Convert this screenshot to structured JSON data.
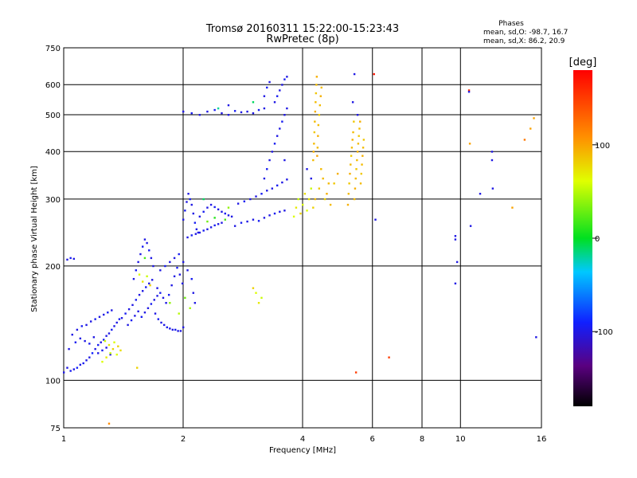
{
  "chart_data": {
    "type": "scatter",
    "title": "Tromsø 20160311 15:22:00-15:23:43",
    "subtitle": "RwPretec (8p)",
    "xlabel": "Frequency [MHz]",
    "ylabel": "Stationary phase Virtual Height [km]",
    "x_scale": "log",
    "y_scale": "log",
    "xlim": [
      1,
      16
    ],
    "ylim": [
      75,
      750
    ],
    "x_ticks": [
      1,
      2,
      4,
      6,
      8,
      10,
      16
    ],
    "x_tick_labels": [
      "1",
      "2",
      "4",
      "6",
      "8",
      "10",
      "16"
    ],
    "y_ticks": [
      75,
      100,
      200,
      300,
      400,
      500,
      600,
      750
    ],
    "y_tick_labels": [
      "75",
      "100",
      "200",
      "300",
      "400",
      "500",
      "600",
      "750"
    ],
    "grid": true,
    "info": {
      "heading": "Phases",
      "line_o": "mean, sd,O: -98.7, 16.7",
      "line_x": "mean, sd,X:  86.2, 20.9"
    },
    "colorbar": {
      "label": "[deg]",
      "min": -180,
      "max": 180,
      "ticks": [
        100,
        0,
        -100
      ],
      "tick_labels": [
        "100",
        "0",
        "-100"
      ]
    },
    "points": [
      [
        1.0,
        105,
        -100
      ],
      [
        1.02,
        108,
        -100
      ],
      [
        1.04,
        106,
        -95
      ],
      [
        1.06,
        107,
        -100
      ],
      [
        1.08,
        108,
        -90
      ],
      [
        1.1,
        110,
        -100
      ],
      [
        1.12,
        111,
        -95
      ],
      [
        1.14,
        113,
        -100
      ],
      [
        1.16,
        115,
        -100
      ],
      [
        1.18,
        118,
        -90
      ],
      [
        1.2,
        121,
        -100
      ],
      [
        1.22,
        124,
        -95
      ],
      [
        1.24,
        126,
        -100
      ],
      [
        1.26,
        128,
        -95
      ],
      [
        1.28,
        131,
        -100
      ],
      [
        1.3,
        133,
        -100
      ],
      [
        1.32,
        136,
        -95
      ],
      [
        1.34,
        139,
        -100
      ],
      [
        1.36,
        142,
        -100
      ],
      [
        1.38,
        145,
        -95
      ],
      [
        1.05,
        132,
        -100
      ],
      [
        1.08,
        136,
        -100
      ],
      [
        1.11,
        139,
        -95
      ],
      [
        1.14,
        140,
        -100
      ],
      [
        1.17,
        143,
        -100
      ],
      [
        1.2,
        145,
        -95
      ],
      [
        1.23,
        147,
        -100
      ],
      [
        1.26,
        149,
        -100
      ],
      [
        1.29,
        151,
        -95
      ],
      [
        1.32,
        153,
        -100
      ],
      [
        1.03,
        121,
        -100
      ],
      [
        1.07,
        126,
        -95
      ],
      [
        1.1,
        129,
        -100
      ],
      [
        1.13,
        127,
        -100
      ],
      [
        1.16,
        125,
        -95
      ],
      [
        1.19,
        130,
        -100
      ],
      [
        1.22,
        118,
        -100
      ],
      [
        1.25,
        120,
        -95
      ],
      [
        1.28,
        122,
        -100
      ],
      [
        1.31,
        117,
        -100
      ],
      [
        1.25,
        112,
        60
      ],
      [
        1.28,
        115,
        70
      ],
      [
        1.31,
        118,
        55
      ],
      [
        1.33,
        121,
        80
      ],
      [
        1.36,
        117,
        60
      ],
      [
        1.39,
        120,
        75
      ],
      [
        1.27,
        127,
        55
      ],
      [
        1.3,
        124,
        70
      ],
      [
        1.34,
        126,
        60
      ],
      [
        1.37,
        123,
        80
      ],
      [
        1.02,
        208,
        -100
      ],
      [
        1.04,
        210,
        -95
      ],
      [
        1.06,
        209,
        -100
      ],
      [
        1.3,
        77,
        110
      ],
      [
        1.53,
        108,
        80
      ],
      [
        1.4,
        146,
        -100
      ],
      [
        1.43,
        150,
        -95
      ],
      [
        1.46,
        154,
        -100
      ],
      [
        1.49,
        158,
        -100
      ],
      [
        1.52,
        163,
        -95
      ],
      [
        1.55,
        168,
        -100
      ],
      [
        1.58,
        172,
        -100
      ],
      [
        1.61,
        176,
        -95
      ],
      [
        1.64,
        180,
        -100
      ],
      [
        1.67,
        184,
        -100
      ],
      [
        1.45,
        140,
        -100
      ],
      [
        1.48,
        144,
        -95
      ],
      [
        1.51,
        148,
        -100
      ],
      [
        1.54,
        152,
        -100
      ],
      [
        1.57,
        147,
        -95
      ],
      [
        1.6,
        151,
        -100
      ],
      [
        1.63,
        155,
        -100
      ],
      [
        1.66,
        159,
        -95
      ],
      [
        1.69,
        163,
        -100
      ],
      [
        1.72,
        167,
        -100
      ],
      [
        1.5,
        185,
        -100
      ],
      [
        1.52,
        195,
        -95
      ],
      [
        1.54,
        205,
        -100
      ],
      [
        1.56,
        215,
        -100
      ],
      [
        1.58,
        225,
        -95
      ],
      [
        1.6,
        235,
        -100
      ],
      [
        1.62,
        230,
        -100
      ],
      [
        1.64,
        220,
        -95
      ],
      [
        1.66,
        210,
        -100
      ],
      [
        1.68,
        200,
        -100
      ],
      [
        1.55,
        190,
        60
      ],
      [
        1.58,
        182,
        70
      ],
      [
        1.62,
        188,
        55
      ],
      [
        1.65,
        178,
        80
      ],
      [
        1.6,
        210,
        20
      ],
      [
        1.7,
        150,
        -100
      ],
      [
        1.73,
        145,
        -95
      ],
      [
        1.76,
        142,
        -100
      ],
      [
        1.79,
        140,
        -100
      ],
      [
        1.82,
        138,
        -95
      ],
      [
        1.85,
        137,
        -100
      ],
      [
        1.88,
        136,
        -100
      ],
      [
        1.91,
        136,
        -95
      ],
      [
        1.94,
        135,
        -100
      ],
      [
        1.97,
        135,
        -100
      ],
      [
        1.72,
        175,
        -100
      ],
      [
        1.75,
        170,
        -95
      ],
      [
        1.78,
        165,
        -100
      ],
      [
        1.81,
        160,
        -100
      ],
      [
        1.84,
        168,
        -95
      ],
      [
        1.87,
        178,
        -100
      ],
      [
        1.9,
        188,
        -100
      ],
      [
        1.93,
        198,
        -95
      ],
      [
        1.96,
        190,
        -100
      ],
      [
        1.99,
        180,
        -100
      ],
      [
        1.75,
        195,
        -100
      ],
      [
        1.8,
        200,
        -95
      ],
      [
        1.85,
        205,
        -100
      ],
      [
        1.9,
        210,
        -100
      ],
      [
        1.95,
        215,
        -95
      ],
      [
        2.0,
        205,
        -100
      ],
      [
        2.05,
        195,
        -100
      ],
      [
        2.1,
        185,
        -95
      ],
      [
        2.12,
        170,
        -100
      ],
      [
        2.14,
        160,
        -100
      ],
      [
        1.85,
        160,
        40
      ],
      [
        1.95,
        150,
        50
      ],
      [
        2.02,
        165,
        30
      ],
      [
        2.08,
        155,
        45
      ],
      [
        2.0,
        138,
        -100
      ],
      [
        2.0,
        265,
        -100
      ],
      [
        2.02,
        280,
        -95
      ],
      [
        2.04,
        295,
        -100
      ],
      [
        2.06,
        310,
        -100
      ],
      [
        2.08,
        300,
        -95
      ],
      [
        2.1,
        290,
        -100
      ],
      [
        2.12,
        275,
        -100
      ],
      [
        2.14,
        260,
        -95
      ],
      [
        2.16,
        250,
        -100
      ],
      [
        2.18,
        245,
        -100
      ],
      [
        2.2,
        270,
        -100
      ],
      [
        2.25,
        278,
        -95
      ],
      [
        2.3,
        285,
        -100
      ],
      [
        2.35,
        290,
        -100
      ],
      [
        2.4,
        286,
        -95
      ],
      [
        2.45,
        282,
        -100
      ],
      [
        2.5,
        278,
        -100
      ],
      [
        2.55,
        275,
        -95
      ],
      [
        2.6,
        272,
        -100
      ],
      [
        2.65,
        270,
        -100
      ],
      [
        2.05,
        238,
        -100
      ],
      [
        2.1,
        241,
        -95
      ],
      [
        2.15,
        243,
        -100
      ],
      [
        2.2,
        245,
        -100
      ],
      [
        2.25,
        248,
        -95
      ],
      [
        2.3,
        250,
        -100
      ],
      [
        2.35,
        253,
        -100
      ],
      [
        2.4,
        256,
        -95
      ],
      [
        2.45,
        258,
        -100
      ],
      [
        2.5,
        260,
        -100
      ],
      [
        2.3,
        262,
        30
      ],
      [
        2.4,
        268,
        10
      ],
      [
        2.55,
        265,
        20
      ],
      [
        2.25,
        300,
        -10
      ],
      [
        2.6,
        285,
        40
      ],
      [
        2.7,
        255,
        -100
      ],
      [
        2.8,
        260,
        -95
      ],
      [
        2.9,
        262,
        -100
      ],
      [
        3.0,
        265,
        -100
      ],
      [
        3.1,
        263,
        -95
      ],
      [
        3.2,
        268,
        -100
      ],
      [
        3.3,
        272,
        -100
      ],
      [
        3.4,
        275,
        -95
      ],
      [
        3.5,
        278,
        -100
      ],
      [
        3.6,
        280,
        -100
      ],
      [
        2.75,
        292,
        -100
      ],
      [
        2.85,
        296,
        -95
      ],
      [
        2.95,
        300,
        -100
      ],
      [
        3.05,
        305,
        -100
      ],
      [
        3.15,
        310,
        -95
      ],
      [
        3.25,
        316,
        -100
      ],
      [
        3.35,
        320,
        -100
      ],
      [
        3.45,
        326,
        -95
      ],
      [
        3.55,
        332,
        -100
      ],
      [
        3.65,
        338,
        -100
      ],
      [
        3.2,
        340,
        -100
      ],
      [
        3.25,
        360,
        -95
      ],
      [
        3.3,
        380,
        -100
      ],
      [
        3.35,
        400,
        -100
      ],
      [
        3.4,
        420,
        -95
      ],
      [
        3.45,
        440,
        -100
      ],
      [
        3.5,
        460,
        -100
      ],
      [
        3.55,
        480,
        -95
      ],
      [
        3.6,
        500,
        -100
      ],
      [
        3.65,
        520,
        -100
      ],
      [
        3.4,
        540,
        -100
      ],
      [
        3.45,
        560,
        -95
      ],
      [
        3.5,
        580,
        -100
      ],
      [
        3.55,
        600,
        -100
      ],
      [
        3.6,
        620,
        -95
      ],
      [
        3.65,
        630,
        -100
      ],
      [
        3.3,
        610,
        -100
      ],
      [
        3.25,
        590,
        -95
      ],
      [
        3.2,
        560,
        -100
      ],
      [
        3.6,
        380,
        -100
      ],
      [
        2.0,
        510,
        -100
      ],
      [
        2.1,
        505,
        -95
      ],
      [
        2.2,
        500,
        -100
      ],
      [
        2.3,
        510,
        -100
      ],
      [
        2.4,
        515,
        -95
      ],
      [
        2.5,
        505,
        -100
      ],
      [
        2.6,
        500,
        -100
      ],
      [
        2.7,
        512,
        -95
      ],
      [
        2.8,
        508,
        -100
      ],
      [
        2.9,
        510,
        -100
      ],
      [
        3.0,
        505,
        -100
      ],
      [
        3.1,
        515,
        -95
      ],
      [
        3.2,
        520,
        -100
      ],
      [
        2.6,
        530,
        -100
      ],
      [
        2.45,
        520,
        -20
      ],
      [
        3.0,
        540,
        -10
      ],
      [
        3.05,
        170,
        60
      ],
      [
        3.1,
        160,
        70
      ],
      [
        3.15,
        165,
        55
      ],
      [
        3.0,
        175,
        80
      ],
      [
        3.8,
        270,
        60
      ],
      [
        3.85,
        285,
        70
      ],
      [
        3.9,
        300,
        55
      ],
      [
        3.95,
        275,
        80
      ],
      [
        4.0,
        290,
        60
      ],
      [
        4.05,
        310,
        75
      ],
      [
        4.1,
        280,
        60
      ],
      [
        4.15,
        300,
        70
      ],
      [
        4.2,
        320,
        55
      ],
      [
        4.25,
        285,
        80
      ],
      [
        4.3,
        300,
        90
      ],
      [
        4.4,
        320,
        85
      ],
      [
        4.5,
        340,
        90
      ],
      [
        4.6,
        310,
        95
      ],
      [
        4.7,
        290,
        90
      ],
      [
        4.8,
        330,
        85
      ],
      [
        4.9,
        350,
        95
      ],
      [
        4.45,
        360,
        90
      ],
      [
        4.55,
        300,
        80
      ],
      [
        4.65,
        330,
        90
      ],
      [
        4.25,
        380,
        90
      ],
      [
        4.26,
        400,
        95
      ],
      [
        4.27,
        420,
        90
      ],
      [
        4.28,
        450,
        85
      ],
      [
        4.29,
        480,
        90
      ],
      [
        4.3,
        510,
        95
      ],
      [
        4.31,
        540,
        90
      ],
      [
        4.32,
        570,
        85
      ],
      [
        4.33,
        600,
        90
      ],
      [
        4.34,
        630,
        95
      ],
      [
        4.35,
        390,
        100
      ],
      [
        4.36,
        410,
        90
      ],
      [
        4.37,
        440,
        95
      ],
      [
        4.38,
        470,
        90
      ],
      [
        4.4,
        500,
        85
      ],
      [
        4.42,
        530,
        90
      ],
      [
        4.44,
        560,
        95
      ],
      [
        4.46,
        590,
        90
      ],
      [
        4.2,
        340,
        -100
      ],
      [
        4.1,
        360,
        -100
      ],
      [
        5.2,
        290,
        95
      ],
      [
        5.22,
        310,
        90
      ],
      [
        5.24,
        330,
        85
      ],
      [
        5.26,
        350,
        95
      ],
      [
        5.28,
        370,
        90
      ],
      [
        5.3,
        390,
        85
      ],
      [
        5.32,
        410,
        90
      ],
      [
        5.34,
        430,
        95
      ],
      [
        5.36,
        450,
        90
      ],
      [
        5.38,
        480,
        85
      ],
      [
        5.4,
        300,
        90
      ],
      [
        5.42,
        320,
        95
      ],
      [
        5.44,
        340,
        90
      ],
      [
        5.46,
        360,
        85
      ],
      [
        5.48,
        380,
        90
      ],
      [
        5.5,
        400,
        95
      ],
      [
        5.52,
        420,
        90
      ],
      [
        5.54,
        440,
        85
      ],
      [
        5.56,
        460,
        90
      ],
      [
        5.58,
        480,
        95
      ],
      [
        5.6,
        330,
        90
      ],
      [
        5.62,
        350,
        85
      ],
      [
        5.64,
        370,
        90
      ],
      [
        5.66,
        390,
        95
      ],
      [
        5.68,
        410,
        90
      ],
      [
        5.7,
        430,
        85
      ],
      [
        5.35,
        540,
        -100
      ],
      [
        5.5,
        500,
        -100
      ],
      [
        5.4,
        640,
        -100
      ],
      [
        5.45,
        105,
        150
      ],
      [
        6.05,
        640,
        170
      ],
      [
        6.1,
        265,
        -100
      ],
      [
        6.6,
        115,
        150
      ],
      [
        10.5,
        580,
        160
      ],
      [
        10.5,
        575,
        -100
      ],
      [
        10.55,
        420,
        100
      ],
      [
        9.7,
        240,
        -100
      ],
      [
        9.7,
        235,
        -100
      ],
      [
        9.8,
        205,
        -100
      ],
      [
        9.7,
        180,
        -100
      ],
      [
        12.0,
        400,
        -100
      ],
      [
        12.0,
        380,
        -100
      ],
      [
        12.05,
        320,
        -100
      ],
      [
        10.6,
        255,
        -100
      ],
      [
        14.5,
        430,
        120
      ],
      [
        15.0,
        460,
        100
      ],
      [
        15.5,
        130,
        -100
      ],
      [
        13.5,
        285,
        100
      ],
      [
        11.2,
        310,
        -100
      ],
      [
        15.3,
        490,
        100
      ]
    ]
  }
}
